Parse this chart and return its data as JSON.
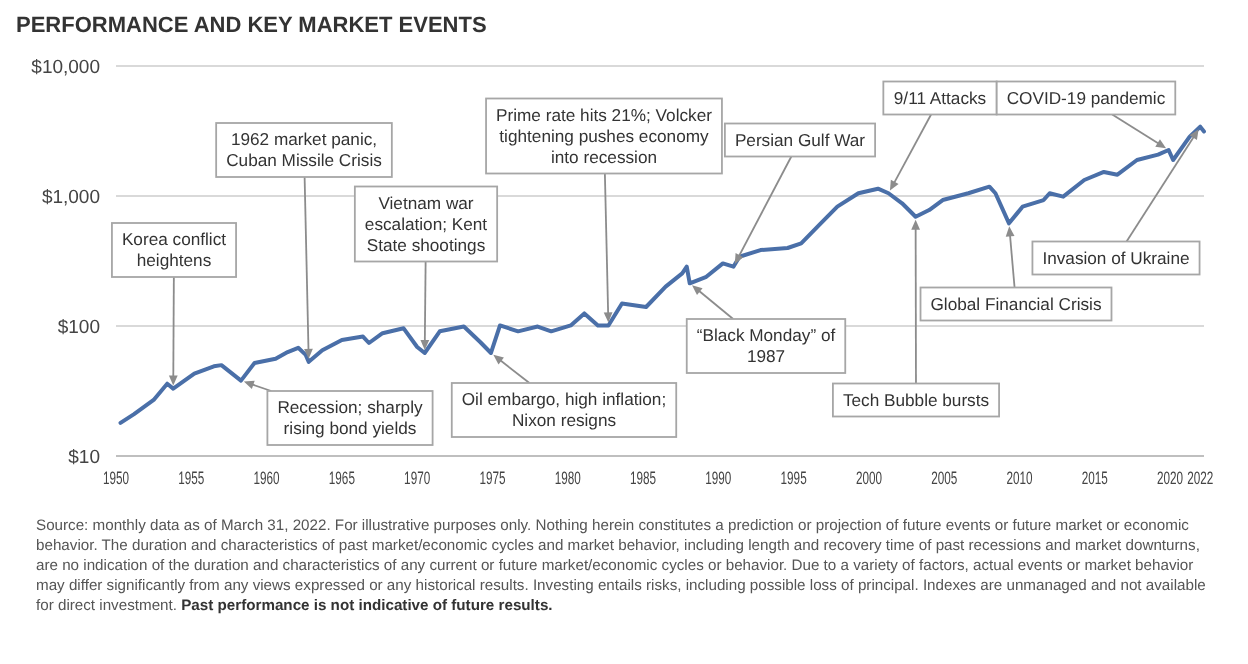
{
  "chart_data": {
    "type": "line",
    "title": "PERFORMANCE AND KEY MARKET EVENTS",
    "x": [
      1950.3,
      1951.2,
      1952.5,
      1953.4,
      1953.8,
      1955.2,
      1956.5,
      1957.0,
      1958.3,
      1959.2,
      1960.6,
      1961.4,
      1962.1,
      1962.6,
      1962.8,
      1963.7,
      1965.0,
      1966.4,
      1966.8,
      1967.7,
      1969.1,
      1970.0,
      1970.5,
      1971.5,
      1973.1,
      1974.2,
      1974.9,
      1975.5,
      1976.7,
      1978.0,
      1978.9,
      1980.2,
      1981.1,
      1982.0,
      1982.7,
      1983.6,
      1985.2,
      1986.5,
      1987.6,
      1987.9,
      1988.1,
      1989.2,
      1990.3,
      1991.0,
      1991.4,
      1992.8,
      1994.6,
      1995.5,
      1996.8,
      1997.9,
      1999.3,
      2000.6,
      2001.3,
      2002.2,
      2003.1,
      2004.0,
      2004.9,
      2006.6,
      2008.0,
      2008.4,
      2009.3,
      2010.2,
      2011.6,
      2012.0,
      2012.9,
      2014.3,
      2015.6,
      2016.5,
      2017.8,
      2019.2,
      2019.9,
      2020.2,
      2021.3,
      2022.0,
      2022.25
    ],
    "values": [
      18,
      21,
      27,
      36,
      33,
      43,
      49,
      50,
      38,
      52,
      56,
      63,
      68,
      60,
      53,
      65,
      78,
      83,
      74,
      88,
      96,
      69,
      62,
      91,
      99,
      75,
      62,
      101,
      91,
      99,
      91,
      101,
      125,
      101,
      101,
      149,
      140,
      201,
      254,
      286,
      213,
      239,
      303,
      286,
      341,
      384,
      398,
      432,
      616,
      828,
      1050,
      1138,
      1050,
      879,
      693,
      780,
      931,
      1050,
      1180,
      1050,
      616,
      828,
      931,
      1050,
      989,
      1327,
      1531,
      1459,
      1892,
      2080,
      2260,
      1892,
      2864,
      3412,
      3139
    ],
    "color": "#4a6fa8",
    "xlim": [
      1950,
      2022.25
    ],
    "xticks": [
      1950,
      1955,
      1960,
      1965,
      1970,
      1975,
      1980,
      1985,
      1990,
      1995,
      2000,
      2005,
      2010,
      2015,
      2020,
      2022
    ],
    "ylim": [
      10,
      10000
    ],
    "yticks": [
      {
        "value": 10,
        "label": "$10"
      },
      {
        "value": 100,
        "label": "$100"
      },
      {
        "value": 1000,
        "label": "$1,000"
      },
      {
        "value": 10000,
        "label": "$10,000"
      }
    ],
    "log": "y",
    "grid": "y",
    "annotations": [
      {
        "text": "Korea conflict heightens",
        "x": 1953.8,
        "y": 33
      },
      {
        "text": "1962 market panic, Cuban Missile Crisis",
        "x": 1962.8,
        "y": 53
      },
      {
        "text": "Vietnam war escalation; Kent State shootings",
        "x": 1970.5,
        "y": 62
      },
      {
        "text": "Prime rate hits 21%; Volcker tightening pushes economy into recession",
        "x": 1982.7,
        "y": 101
      },
      {
        "text": "Persian Gulf War",
        "x": 1991.0,
        "y": 286
      },
      {
        "text": "9/11 Attacks",
        "x": 2001.3,
        "y": 1050
      },
      {
        "text": "COVID-19 pandemic",
        "x": 2019.9,
        "y": 2260
      },
      {
        "text": "“Black Monday” of 1987",
        "x": 1988.1,
        "y": 213
      },
      {
        "text": "Recession; sharply rising bond yields",
        "x": 1958.3,
        "y": 38
      },
      {
        "text": "Oil embargo, high inflation; Nixon resigns",
        "x": 1974.9,
        "y": 62
      },
      {
        "text": "Tech Bubble bursts",
        "x": 2003.1,
        "y": 693
      },
      {
        "text": "Global Financial Crisis",
        "x": 2009.3,
        "y": 616
      },
      {
        "text": "Invasion of Ukraine",
        "x": 2022.0,
        "y": 3412
      },
      "Source: monthly data as of March 31, 2022. For illustrative purposes only. Nothing herein constitutes a prediction or projection of future events or future market or economic behavior. The duration and characteristics of past market/economic cycles and market behavior, including length and recovery time of past recessions and market downturns, are no indication of the duration and characteristics of any current or future market/economic cycles or behavior. Due to a variety of factors, actual events or market behavior may differ significantly from any views expressed or any historical results. Investing entails risks, including possible loss of principal. Indexes are unmanaged and not available for direct investment.",
      "Past performance is not indicative of future results."
    ]
  }
}
